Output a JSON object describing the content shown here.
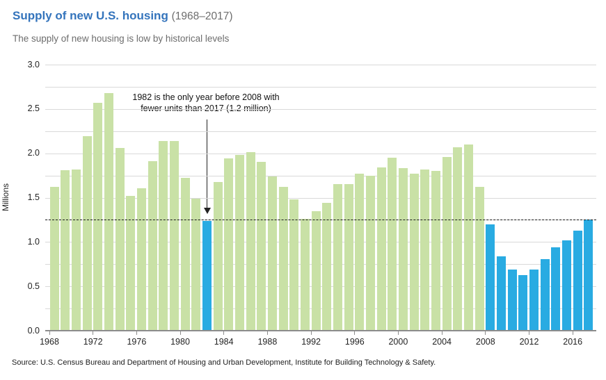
{
  "header": {
    "title": "Supply of new U.S. housing",
    "title_suffix": "(1968–2017)",
    "subtitle": "The supply of new housing is low by historical levels"
  },
  "source": "Source: U.S. Census Bureau and Department of Housing and Urban Development, Institute for Building Technology & Safety.",
  "chart_data": {
    "type": "bar",
    "title": "Supply of new U.S. housing (1968–2017)",
    "subtitle": "The supply of new housing is low by historical levels",
    "ylabel": "Millions",
    "xlabel": "",
    "ylim": [
      0,
      3.0
    ],
    "y_label_step": 0.5,
    "y_grid_step": 0.25,
    "grid": true,
    "x_tick_years": [
      1968,
      1972,
      1976,
      1980,
      1984,
      1988,
      1992,
      1996,
      2000,
      2004,
      2008,
      2012,
      2016
    ],
    "years": [
      1968,
      1969,
      1970,
      1971,
      1972,
      1973,
      1974,
      1975,
      1976,
      1977,
      1978,
      1979,
      1980,
      1981,
      1982,
      1983,
      1984,
      1985,
      1986,
      1987,
      1988,
      1989,
      1990,
      1991,
      1992,
      1993,
      1994,
      1995,
      1996,
      1997,
      1998,
      1999,
      2000,
      2001,
      2002,
      2003,
      2004,
      2005,
      2006,
      2007,
      2008,
      2009,
      2010,
      2011,
      2012,
      2013,
      2014,
      2015,
      2016,
      2017
    ],
    "values": [
      1.62,
      1.81,
      1.82,
      2.19,
      2.57,
      2.68,
      2.06,
      1.52,
      1.61,
      1.91,
      2.14,
      2.14,
      1.72,
      1.49,
      1.24,
      1.68,
      1.94,
      1.98,
      2.01,
      1.9,
      1.74,
      1.62,
      1.48,
      1.26,
      1.35,
      1.44,
      1.65,
      1.65,
      1.77,
      1.75,
      1.84,
      1.95,
      1.83,
      1.77,
      1.82,
      1.8,
      1.96,
      2.07,
      2.1,
      1.62,
      1.2,
      0.84,
      0.69,
      0.63,
      0.69,
      0.81,
      0.94,
      1.02,
      1.13,
      1.25
    ],
    "highlight_years": [
      1982,
      2008,
      2009,
      2010,
      2011,
      2012,
      2013,
      2014,
      2015,
      2016,
      2017
    ],
    "colors": {
      "bar_default": "#c9e1a6",
      "bar_highlight": "#29abe2",
      "title_accent": "#3474bc",
      "gridline": "#d9d9d9",
      "axis_line": "#8c8c8c",
      "reference_line": "#1a1a1a"
    },
    "reference_line": {
      "value": 1.25,
      "style": "dashed"
    },
    "annotation": {
      "line1": "1982 is the only year before 2008 with",
      "line2": "fewer units than 2017 (1.2 million)",
      "target_year": 1982
    },
    "legend": null
  }
}
